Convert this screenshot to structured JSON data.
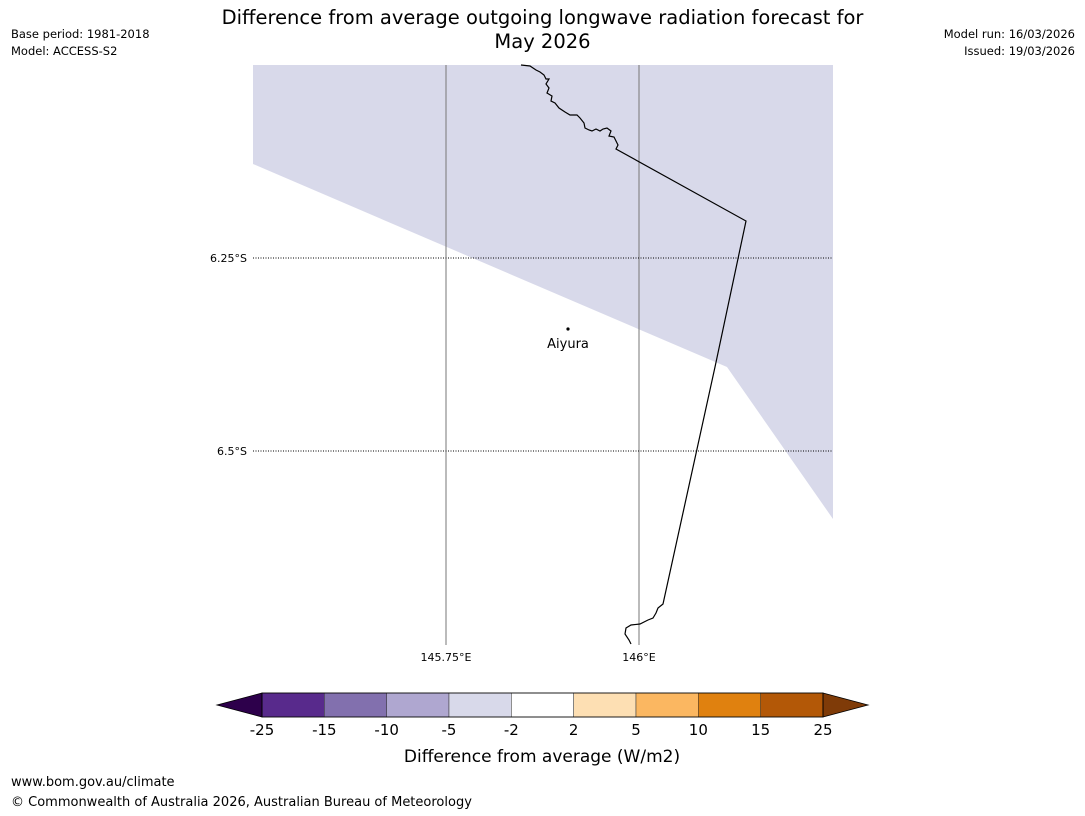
{
  "title": {
    "line1": "Difference from average outgoing longwave radiation forecast for",
    "line2": "May 2026"
  },
  "meta": {
    "base_period": "Base period: 1981-2018",
    "model": "Model: ACCESS-S2",
    "model_run": "Model run: 16/03/2026",
    "issued": "Issued: 19/03/2026"
  },
  "map": {
    "latitude_labels": [
      "6.25°S",
      "6.5°S"
    ],
    "longitude_labels": [
      "145.75°E",
      "146°E"
    ],
    "place": {
      "name": "Aiyura"
    },
    "shaded_category": "-5 to -2",
    "shaded_color": "#d8d9ea"
  },
  "colorbar": {
    "label": "Difference from average (W/m2)",
    "ticks": [
      "-25",
      "-15",
      "-10",
      "-5",
      "-2",
      "2",
      "5",
      "10",
      "15",
      "25"
    ],
    "colors": [
      "#582a8c",
      "#8270ae",
      "#afa7d0",
      "#d8d9ea",
      "#ffffff",
      "#fddfb3",
      "#fbb761",
      "#e0810f",
      "#b35807"
    ],
    "extend_low_color": "#2d004b",
    "extend_high_color": "#7f3b08"
  },
  "footer": {
    "url": "www.bom.gov.au/climate",
    "copyright": "© Commonwealth of Australia 2026, Australian Bureau of Meteorology"
  }
}
